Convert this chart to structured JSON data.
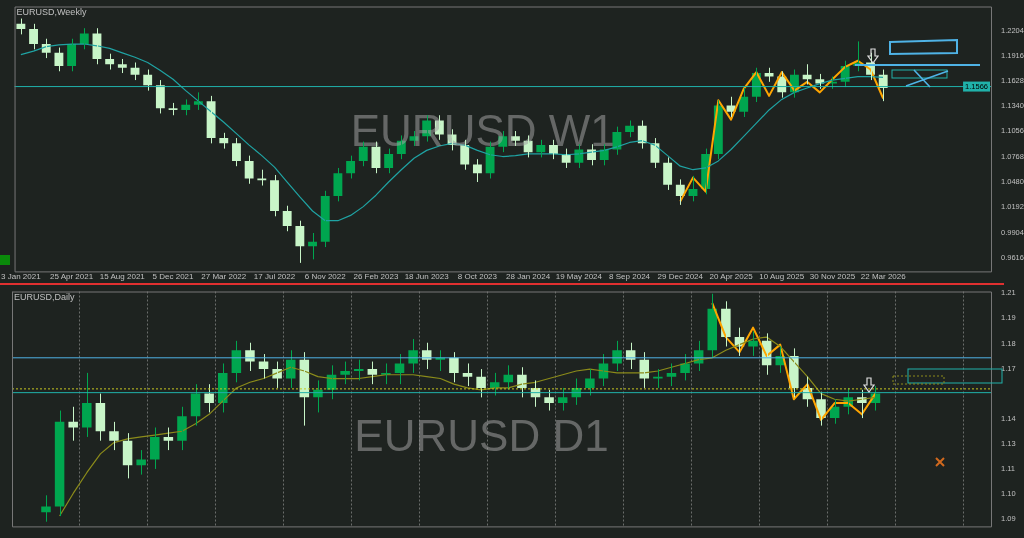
{
  "chart_data": [
    {
      "type": "candlestick",
      "title": "EURUSD,Weekly",
      "annotations": [
        "EURUSD W1"
      ],
      "categories": [
        "3 Jan 2021",
        null,
        null,
        null,
        "25 Apr 2021",
        null,
        null,
        null,
        "15 Aug 2021",
        null,
        null,
        null,
        "5 Dec 2021",
        null,
        null,
        null,
        "27 Mar 2022",
        null,
        null,
        null,
        "17 Jul 2022",
        null,
        null,
        null,
        "6 Nov 2022",
        null,
        null,
        null,
        "26 Feb 2023",
        null,
        null,
        null,
        "18 Jun 2023",
        null,
        null,
        null,
        "8 Oct 2023",
        null,
        null,
        null,
        "28 Jan 2024",
        null,
        null,
        null,
        "19 May 2024",
        null,
        null,
        null,
        "8 Sep 2024",
        null,
        null,
        null,
        "29 Dec 2024",
        null,
        null,
        null,
        "20 Apr 2025",
        null,
        null,
        null,
        "10 Aug 2025",
        null,
        null,
        null,
        "30 Nov 2025",
        null,
        null,
        null,
        "22 Mar 2026",
        null,
        null,
        null,
        null,
        null,
        null,
        null,
        null
      ],
      "ohlc": [
        [
          1.228,
          1.234,
          1.216,
          1.222
        ],
        [
          1.222,
          1.228,
          1.199,
          1.205
        ],
        [
          1.205,
          1.211,
          1.189,
          1.195
        ],
        [
          1.195,
          1.201,
          1.174,
          1.18
        ],
        [
          1.18,
          1.211,
          1.174,
          1.205
        ],
        [
          1.205,
          1.223,
          1.199,
          1.217
        ],
        [
          1.217,
          1.223,
          1.182,
          1.188
        ],
        [
          1.188,
          1.194,
          1.176,
          1.182
        ],
        [
          1.182,
          1.188,
          1.172,
          1.178
        ],
        [
          1.178,
          1.184,
          1.164,
          1.17
        ],
        [
          1.17,
          1.176,
          1.152,
          1.158
        ],
        [
          1.158,
          1.164,
          1.126,
          1.132
        ],
        [
          1.132,
          1.138,
          1.124,
          1.13
        ],
        [
          1.13,
          1.142,
          1.124,
          1.136
        ],
        [
          1.136,
          1.15,
          1.13,
          1.14
        ],
        [
          1.14,
          1.146,
          1.092,
          1.098
        ],
        [
          1.098,
          1.104,
          1.086,
          1.092
        ],
        [
          1.092,
          1.098,
          1.066,
          1.072
        ],
        [
          1.072,
          1.078,
          1.046,
          1.052
        ],
        [
          1.052,
          1.062,
          1.044,
          1.05
        ],
        [
          1.05,
          1.056,
          1.009,
          1.015
        ],
        [
          1.015,
          1.021,
          0.992,
          0.998
        ],
        [
          0.998,
          1.004,
          0.956,
          0.975
        ],
        [
          0.975,
          0.99,
          0.96,
          0.98
        ],
        [
          0.98,
          1.038,
          0.974,
          1.032
        ],
        [
          1.032,
          1.064,
          1.026,
          1.058
        ],
        [
          1.058,
          1.078,
          1.052,
          1.072
        ],
        [
          1.072,
          1.094,
          1.066,
          1.088
        ],
        [
          1.088,
          1.094,
          1.058,
          1.064
        ],
        [
          1.064,
          1.086,
          1.058,
          1.08
        ],
        [
          1.08,
          1.101,
          1.074,
          1.095
        ],
        [
          1.095,
          1.106,
          1.089,
          1.1
        ],
        [
          1.1,
          1.124,
          1.094,
          1.118
        ],
        [
          1.118,
          1.124,
          1.096,
          1.102
        ],
        [
          1.102,
          1.108,
          1.084,
          1.09
        ],
        [
          1.09,
          1.096,
          1.062,
          1.068
        ],
        [
          1.068,
          1.074,
          1.048,
          1.058
        ],
        [
          1.058,
          1.094,
          1.052,
          1.088
        ],
        [
          1.088,
          1.106,
          1.082,
          1.1
        ],
        [
          1.1,
          1.106,
          1.089,
          1.095
        ],
        [
          1.095,
          1.101,
          1.076,
          1.082
        ],
        [
          1.082,
          1.096,
          1.076,
          1.09
        ],
        [
          1.09,
          1.096,
          1.074,
          1.08
        ],
        [
          1.08,
          1.086,
          1.064,
          1.07
        ],
        [
          1.07,
          1.091,
          1.064,
          1.085
        ],
        [
          1.085,
          1.091,
          1.067,
          1.073
        ],
        [
          1.073,
          1.091,
          1.067,
          1.085
        ],
        [
          1.085,
          1.111,
          1.079,
          1.105
        ],
        [
          1.105,
          1.118,
          1.099,
          1.112
        ],
        [
          1.112,
          1.118,
          1.086,
          1.092
        ],
        [
          1.092,
          1.098,
          1.064,
          1.07
        ],
        [
          1.07,
          1.076,
          1.039,
          1.045
        ],
        [
          1.045,
          1.051,
          1.022,
          1.032
        ],
        [
          1.032,
          1.055,
          1.026,
          1.04
        ],
        [
          1.04,
          1.086,
          1.034,
          1.08
        ],
        [
          1.08,
          1.141,
          1.074,
          1.135
        ],
        [
          1.135,
          1.145,
          1.122,
          1.128
        ],
        [
          1.128,
          1.155,
          1.122,
          1.145
        ],
        [
          1.145,
          1.178,
          1.139,
          1.172
        ],
        [
          1.172,
          1.178,
          1.162,
          1.168
        ],
        [
          1.168,
          1.174,
          1.144,
          1.15
        ],
        [
          1.15,
          1.176,
          1.144,
          1.17
        ],
        [
          1.17,
          1.182,
          1.159,
          1.165
        ],
        [
          1.165,
          1.171,
          1.154,
          1.16
        ],
        [
          1.16,
          1.168,
          1.154,
          1.162
        ],
        [
          1.162,
          1.186,
          1.156,
          1.18
        ],
        [
          1.18,
          1.208,
          1.174,
          1.184
        ],
        [
          1.184,
          1.195,
          1.164,
          1.17
        ],
        [
          1.17,
          1.176,
          1.14,
          1.155
        ],
        null,
        null,
        null,
        null,
        null,
        null,
        null,
        null
      ],
      "series": [
        {
          "type": "line",
          "color": "#1fa3a3",
          "values": [
            1.193,
            1.197,
            1.202,
            1.204,
            1.205,
            1.205,
            1.203,
            1.2,
            1.195,
            1.19,
            1.184,
            1.175,
            1.165,
            1.152,
            1.14,
            1.128,
            1.116,
            1.103,
            1.09,
            1.078,
            1.065,
            1.048,
            1.031,
            1.015,
            1.004,
            1.004,
            1.01,
            1.02,
            1.033,
            1.048,
            1.062,
            1.075,
            1.084,
            1.089,
            1.092,
            1.09,
            1.084,
            1.079,
            1.077,
            1.078,
            1.08,
            1.08,
            1.08,
            1.079,
            1.08,
            1.082,
            1.084,
            1.088,
            1.093,
            1.095,
            1.09,
            1.078,
            1.066,
            1.062,
            1.064,
            1.072,
            1.085,
            1.1,
            1.115,
            1.13,
            1.142,
            1.15,
            1.155,
            1.16,
            1.164,
            1.166,
            1.168,
            1.168,
            1.167,
            null,
            null,
            null,
            null,
            null,
            null,
            null,
            null
          ]
        },
        {
          "type": "line",
          "color": "#ffa500",
          "values": [
            null,
            null,
            null,
            null,
            null,
            null,
            null,
            null,
            null,
            null,
            null,
            null,
            null,
            null,
            null,
            null,
            null,
            null,
            null,
            null,
            null,
            null,
            null,
            null,
            null,
            null,
            null,
            null,
            null,
            null,
            null,
            null,
            null,
            null,
            null,
            null,
            null,
            null,
            null,
            null,
            null,
            null,
            null,
            null,
            null,
            null,
            null,
            null,
            null,
            null,
            null,
            null,
            1.026,
            1.053,
            1.037,
            1.141,
            1.119,
            1.154,
            1.173,
            1.146,
            1.173,
            1.152,
            1.162,
            1.15,
            1.165,
            1.179,
            1.186,
            1.176,
            1.143,
            null,
            null,
            null,
            null,
            null,
            null,
            null,
            null
          ]
        }
      ],
      "ylim": [
        0.9463,
        1.2477
      ],
      "yticks": [
        {
          "value": 1.2204,
          "label": "1.2204"
        },
        {
          "value": 1.1916,
          "label": "1.1916"
        },
        {
          "value": 1.1628,
          "label": "1.1628"
        },
        {
          "value": 1.134,
          "label": "1.1340"
        },
        {
          "value": 1.1056,
          "label": "1.1056"
        },
        {
          "value": 1.0768,
          "label": "1.0768"
        },
        {
          "value": 1.048,
          "label": "1.0480"
        },
        {
          "value": 1.0192,
          "label": "1.0192"
        },
        {
          "value": 0.9904,
          "label": "0.9904"
        },
        {
          "value": 0.9616,
          "label": "0.9616"
        }
      ],
      "ref_lines": [
        {
          "axis": "y",
          "value": 1.1566,
          "label": "1.1566",
          "color": "#20b2aa"
        }
      ],
      "grid": false,
      "legend": false
    },
    {
      "type": "candlestick",
      "title": "EURUSD,Daily",
      "annotations": [
        "EURUSD D1"
      ],
      "categories": [
        null,
        null,
        null,
        null,
        null,
        null,
        null,
        null,
        null,
        null,
        null,
        null,
        null,
        null,
        null,
        null,
        null,
        null,
        null,
        null,
        null,
        null,
        null,
        null,
        null,
        null,
        null,
        null,
        null,
        null,
        null,
        null,
        null,
        null,
        null,
        null,
        null,
        null,
        null,
        null,
        null,
        null,
        null,
        null,
        null,
        null,
        null,
        null,
        null,
        null,
        null,
        null,
        null,
        null,
        null,
        null,
        null,
        null,
        null,
        null,
        null,
        null,
        null,
        null,
        null,
        null,
        null,
        null,
        null,
        null,
        null,
        null
      ],
      "ohlc": [
        null,
        null,
        [
          1.092,
          1.101,
          1.087,
          1.095
        ],
        [
          1.095,
          1.146,
          1.09,
          1.14
        ],
        [
          1.14,
          1.148,
          1.13,
          1.137
        ],
        [
          1.137,
          1.166,
          1.132,
          1.15
        ],
        [
          1.15,
          1.155,
          1.13,
          1.135
        ],
        [
          1.135,
          1.14,
          1.125,
          1.13
        ],
        [
          1.13,
          1.134,
          1.11,
          1.117
        ],
        [
          1.117,
          1.125,
          1.112,
          1.12
        ],
        [
          1.12,
          1.137,
          1.115,
          1.132
        ],
        [
          1.132,
          1.137,
          1.125,
          1.13
        ],
        [
          1.13,
          1.148,
          1.125,
          1.143
        ],
        [
          1.143,
          1.16,
          1.138,
          1.155
        ],
        [
          1.155,
          1.16,
          1.145,
          1.15
        ],
        [
          1.15,
          1.171,
          1.145,
          1.166
        ],
        [
          1.166,
          1.183,
          1.161,
          1.178
        ],
        [
          1.178,
          1.182,
          1.167,
          1.172
        ],
        [
          1.172,
          1.176,
          1.163,
          1.168
        ],
        [
          1.168,
          1.172,
          1.158,
          1.163
        ],
        [
          1.163,
          1.178,
          1.158,
          1.173
        ],
        [
          1.173,
          1.177,
          1.138,
          1.153
        ],
        [
          1.153,
          1.162,
          1.145,
          1.157
        ],
        [
          1.157,
          1.17,
          1.152,
          1.165
        ],
        [
          1.165,
          1.172,
          1.16,
          1.167
        ],
        [
          1.167,
          1.173,
          1.162,
          1.168
        ],
        [
          1.168,
          1.172,
          1.16,
          1.165
        ],
        [
          1.165,
          1.171,
          1.16,
          1.166
        ],
        [
          1.166,
          1.176,
          1.16,
          1.171
        ],
        [
          1.171,
          1.184,
          1.166,
          1.178
        ],
        [
          1.178,
          1.182,
          1.168,
          1.173
        ],
        [
          1.173,
          1.178,
          1.167,
          1.174
        ],
        [
          1.174,
          1.177,
          1.161,
          1.166
        ],
        [
          1.166,
          1.171,
          1.159,
          1.164
        ],
        [
          1.164,
          1.168,
          1.153,
          1.158
        ],
        [
          1.158,
          1.166,
          1.154,
          1.161
        ],
        [
          1.161,
          1.17,
          1.157,
          1.165
        ],
        [
          1.165,
          1.169,
          1.153,
          1.158
        ],
        [
          1.158,
          1.162,
          1.148,
          1.153
        ],
        [
          1.153,
          1.157,
          1.146,
          1.15
        ],
        [
          1.15,
          1.158,
          1.146,
          1.153
        ],
        [
          1.153,
          1.163,
          1.149,
          1.158
        ],
        [
          1.158,
          1.168,
          1.154,
          1.163
        ],
        [
          1.163,
          1.176,
          1.159,
          1.171
        ],
        [
          1.171,
          1.183,
          1.167,
          1.178
        ],
        [
          1.178,
          1.182,
          1.168,
          1.173
        ],
        [
          1.173,
          1.177,
          1.158,
          1.163
        ],
        [
          1.163,
          1.168,
          1.158,
          1.164
        ],
        [
          1.164,
          1.171,
          1.159,
          1.166
        ],
        [
          1.166,
          1.176,
          1.162,
          1.171
        ],
        [
          1.171,
          1.183,
          1.167,
          1.178
        ],
        [
          1.178,
          1.208,
          1.174,
          1.2
        ],
        [
          1.2,
          1.204,
          1.18,
          1.185
        ],
        [
          1.185,
          1.19,
          1.175,
          1.18
        ],
        [
          1.18,
          1.188,
          1.175,
          1.183
        ],
        [
          1.183,
          1.187,
          1.165,
          1.17
        ],
        [
          1.17,
          1.18,
          1.166,
          1.175
        ],
        [
          1.175,
          1.179,
          1.153,
          1.158
        ],
        [
          1.158,
          1.164,
          1.148,
          1.152
        ],
        [
          1.152,
          1.156,
          1.138,
          1.142
        ],
        [
          1.142,
          1.152,
          1.139,
          1.148
        ],
        [
          1.148,
          1.158,
          1.144,
          1.153
        ],
        [
          1.153,
          1.157,
          1.142,
          1.15
        ],
        [
          1.15,
          1.159,
          1.146,
          1.155
        ],
        null,
        null,
        null,
        null,
        null,
        null,
        null,
        null
      ],
      "series": [
        {
          "type": "line",
          "color": "#8b8b1a",
          "values": [
            null,
            null,
            null,
            1.09,
            1.102,
            1.113,
            1.123,
            1.129,
            1.131,
            1.132,
            1.133,
            1.134,
            1.135,
            1.139,
            1.144,
            1.151,
            1.158,
            1.161,
            1.163,
            1.166,
            1.169,
            1.167,
            1.164,
            1.163,
            1.163,
            1.163,
            1.164,
            1.165,
            1.165,
            1.165,
            1.164,
            1.163,
            1.16,
            1.158,
            1.157,
            1.158,
            1.158,
            1.16,
            1.161,
            1.163,
            1.165,
            1.167,
            1.168,
            1.167,
            1.166,
            1.166,
            1.166,
            1.167,
            1.169,
            1.171,
            1.173,
            1.174,
            1.178,
            1.181,
            1.184,
            1.185,
            1.18,
            1.172,
            1.164,
            1.155,
            1.152,
            1.151,
            1.152,
            1.153,
            null,
            null,
            null,
            null,
            null,
            null,
            null,
            null
          ]
        },
        {
          "type": "line",
          "color": "#ffa500",
          "values": [
            null,
            null,
            null,
            null,
            null,
            null,
            null,
            null,
            null,
            null,
            null,
            null,
            null,
            null,
            null,
            null,
            null,
            null,
            null,
            null,
            null,
            null,
            null,
            null,
            null,
            null,
            null,
            null,
            null,
            null,
            null,
            null,
            null,
            null,
            null,
            null,
            null,
            null,
            null,
            null,
            null,
            null,
            null,
            null,
            null,
            null,
            null,
            null,
            null,
            null,
            null,
            1.203,
            1.185,
            1.177,
            1.19,
            1.175,
            1.181,
            1.152,
            1.16,
            1.141,
            1.15,
            1.15,
            1.144,
            1.155,
            null,
            null,
            null,
            null,
            null,
            null,
            null,
            null
          ]
        }
      ],
      "ylim": [
        1.0845,
        1.2092
      ],
      "yticks": [
        {
          "value": 1.2082,
          "label": "1.21"
        },
        {
          "value": 1.1949,
          "label": "1.19"
        },
        {
          "value": 1.1815,
          "label": "1.18"
        },
        {
          "value": 1.1682,
          "label": "1.17"
        },
        {
          "value": 1.1415,
          "label": "1.14"
        },
        {
          "value": 1.1282,
          "label": "1.13"
        },
        {
          "value": 1.1149,
          "label": "1.11"
        },
        {
          "value": 1.1015,
          "label": "1.10"
        },
        {
          "value": 1.0882,
          "label": "1.09"
        }
      ],
      "ref_lines": [
        {
          "axis": "y",
          "value": 1.1555,
          "color": "#20b2aa"
        },
        {
          "axis": "y",
          "value": 1.1575,
          "color": "#c8c820",
          "line_style": "dotted"
        },
        {
          "axis": "y",
          "value": 1.174,
          "color": "#4fb3e6"
        }
      ],
      "grid": "x",
      "legend": false
    }
  ]
}
